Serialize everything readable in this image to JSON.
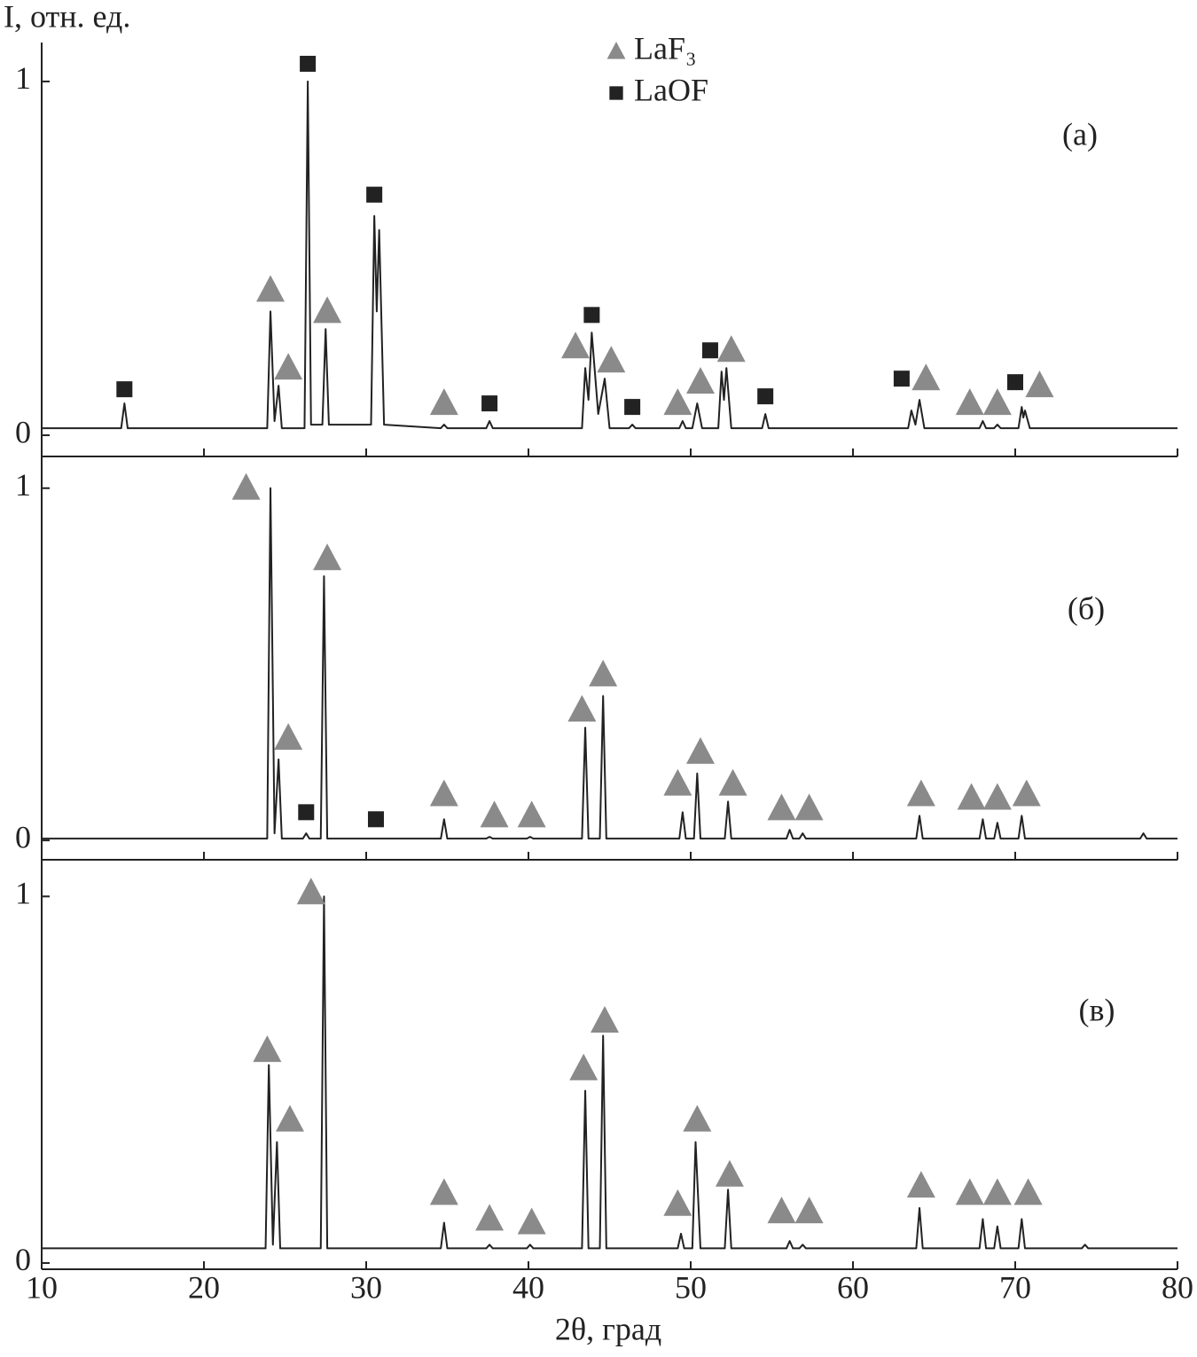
{
  "legend": [
    {
      "name": "LaF₃",
      "shape": "triangle",
      "color": "#8a8a8a"
    },
    {
      "name": "LaOF",
      "shape": "square",
      "color": "#222222"
    }
  ],
  "chart_data": [
    {
      "type": "line",
      "ylabel": "I, отн. ед.",
      "label": "(а)",
      "xlim": [
        10,
        80
      ],
      "ylim": [
        -0.06,
        1.11
      ],
      "xticks": [
        10,
        20,
        30,
        40,
        50,
        60,
        70,
        80
      ],
      "yticks": [
        0,
        1
      ],
      "xtick_labels": false,
      "series": [
        {
          "color": "#222222",
          "x": [
            10,
            14.9,
            15.1,
            15.3,
            23.9,
            24.1,
            24.35,
            24.6,
            24.8,
            26.2,
            26.4,
            26.6,
            27.3,
            27.5,
            27.7,
            30.3,
            30.5,
            30.65,
            30.8,
            31.1,
            34.6,
            34.8,
            35.0,
            37.4,
            37.6,
            37.8,
            43.3,
            43.5,
            43.7,
            43.9,
            44.3,
            44.7,
            45.0,
            46.2,
            46.4,
            46.6,
            49.3,
            49.5,
            49.7,
            50.1,
            50.4,
            50.7,
            51.7,
            51.9,
            52.05,
            52.2,
            52.5,
            54.4,
            54.6,
            54.8,
            63.4,
            63.6,
            63.85,
            64.1,
            64.4,
            67.8,
            68.0,
            68.2,
            68.7,
            68.9,
            69.1,
            70.2,
            70.4,
            70.5,
            70.6,
            70.9,
            80
          ],
          "values": [
            0.02,
            0.02,
            0.09,
            0.02,
            0.02,
            0.35,
            0.04,
            0.14,
            0.02,
            0.02,
            1.0,
            0.03,
            0.03,
            0.3,
            0.03,
            0.03,
            0.62,
            0.35,
            0.58,
            0.03,
            0.02,
            0.03,
            0.02,
            0.02,
            0.04,
            0.02,
            0.02,
            0.19,
            0.1,
            0.29,
            0.06,
            0.16,
            0.02,
            0.02,
            0.03,
            0.02,
            0.02,
            0.04,
            0.02,
            0.02,
            0.09,
            0.02,
            0.02,
            0.18,
            0.1,
            0.19,
            0.02,
            0.02,
            0.06,
            0.02,
            0.02,
            0.07,
            0.03,
            0.1,
            0.02,
            0.02,
            0.04,
            0.02,
            0.02,
            0.03,
            0.02,
            0.02,
            0.08,
            0.05,
            0.07,
            0.02,
            0.02
          ]
        }
      ],
      "markers": {
        "triangle": {
          "x": [
            24.1,
            25.2,
            27.6,
            34.8,
            42.9,
            45.1,
            49.2,
            50.6,
            52.5,
            64.5,
            67.2,
            68.9,
            71.5
          ],
          "y": [
            0.41,
            0.19,
            0.35,
            0.09,
            0.25,
            0.21,
            0.09,
            0.15,
            0.24,
            0.16,
            0.09,
            0.09,
            0.14
          ]
        },
        "square": {
          "x": [
            15.1,
            26.4,
            30.5,
            43.9,
            37.6,
            46.4,
            51.2,
            54.6,
            63.0,
            70.0
          ],
          "y": [
            0.13,
            1.05,
            0.68,
            0.34,
            0.09,
            0.08,
            0.24,
            0.11,
            0.16,
            0.15
          ]
        }
      }
    },
    {
      "type": "line",
      "label": "(б)",
      "xlim": [
        10,
        80
      ],
      "ylim": [
        -0.055,
        1.09
      ],
      "xticks": [
        10,
        20,
        30,
        40,
        50,
        60,
        70,
        80
      ],
      "yticks": [
        0,
        1
      ],
      "xtick_labels": false,
      "series": [
        {
          "color": "#222222",
          "x": [
            10,
            23.9,
            24.1,
            24.35,
            24.6,
            24.8,
            26.1,
            26.3,
            26.5,
            27.2,
            27.4,
            27.6,
            34.6,
            34.8,
            35.0,
            37.4,
            37.6,
            37.8,
            39.9,
            40.1,
            40.3,
            43.3,
            43.5,
            43.7,
            44.4,
            44.6,
            44.8,
            49.3,
            49.5,
            49.7,
            50.2,
            50.4,
            50.6,
            52.1,
            52.3,
            52.5,
            55.9,
            56.1,
            56.3,
            56.7,
            56.9,
            57.1,
            63.9,
            64.1,
            64.3,
            67.8,
            68.0,
            68.2,
            68.7,
            68.9,
            69.1,
            70.2,
            70.4,
            70.6,
            77.7,
            77.9,
            78.1,
            80
          ],
          "values": [
            0.005,
            0.005,
            1.0,
            0.02,
            0.23,
            0.005,
            0.005,
            0.02,
            0.005,
            0.005,
            0.75,
            0.005,
            0.005,
            0.06,
            0.005,
            0.005,
            0.01,
            0.005,
            0.005,
            0.01,
            0.005,
            0.005,
            0.32,
            0.005,
            0.005,
            0.41,
            0.005,
            0.005,
            0.08,
            0.005,
            0.005,
            0.19,
            0.005,
            0.005,
            0.11,
            0.005,
            0.005,
            0.03,
            0.005,
            0.005,
            0.02,
            0.005,
            0.005,
            0.07,
            0.005,
            0.005,
            0.06,
            0.005,
            0.005,
            0.05,
            0.005,
            0.005,
            0.07,
            0.005,
            0.005,
            0.02,
            0.005,
            0.005
          ]
        }
      ],
      "markers": {
        "triangle": {
          "x": [
            22.6,
            25.2,
            27.6,
            34.8,
            37.9,
            40.2,
            43.3,
            44.6,
            49.2,
            50.6,
            52.6,
            55.6,
            57.3,
            64.2,
            67.3,
            68.9,
            70.7
          ],
          "y": [
            1.0,
            0.29,
            0.8,
            0.13,
            0.07,
            0.07,
            0.37,
            0.47,
            0.16,
            0.25,
            0.16,
            0.09,
            0.09,
            0.13,
            0.12,
            0.12,
            0.13
          ]
        },
        "square": {
          "x": [
            26.3,
            30.6
          ],
          "y": [
            0.08,
            0.06
          ]
        }
      }
    },
    {
      "type": "line",
      "label": "(в)",
      "xlabel": "2θ, град",
      "xlim": [
        10,
        80
      ],
      "ylim": [
        -0.017,
        1.1
      ],
      "xticks": [
        10,
        20,
        30,
        40,
        50,
        60,
        70,
        80
      ],
      "yticks": [
        0,
        1
      ],
      "xtick_labels": true,
      "series": [
        {
          "color": "#222222",
          "x": [
            10,
            23.8,
            24.0,
            24.25,
            24.5,
            24.7,
            27.2,
            27.4,
            27.6,
            34.6,
            34.8,
            35.0,
            37.4,
            37.6,
            37.8,
            39.9,
            40.1,
            40.3,
            43.3,
            43.5,
            43.7,
            44.4,
            44.6,
            44.8,
            49.2,
            49.4,
            49.6,
            50.1,
            50.3,
            50.6,
            52.1,
            52.3,
            52.5,
            55.9,
            56.1,
            56.3,
            56.7,
            56.9,
            57.1,
            63.9,
            64.1,
            64.3,
            67.8,
            68.0,
            68.2,
            68.7,
            68.9,
            69.1,
            70.2,
            70.4,
            70.6,
            74.1,
            74.3,
            74.5,
            80
          ],
          "values": [
            0.04,
            0.04,
            0.54,
            0.05,
            0.33,
            0.04,
            0.04,
            1.0,
            0.04,
            0.04,
            0.11,
            0.04,
            0.04,
            0.05,
            0.04,
            0.04,
            0.05,
            0.04,
            0.04,
            0.47,
            0.04,
            0.04,
            0.62,
            0.04,
            0.04,
            0.08,
            0.04,
            0.04,
            0.33,
            0.04,
            0.04,
            0.2,
            0.04,
            0.04,
            0.06,
            0.04,
            0.04,
            0.05,
            0.04,
            0.04,
            0.15,
            0.04,
            0.04,
            0.12,
            0.04,
            0.04,
            0.1,
            0.04,
            0.04,
            0.12,
            0.04,
            0.04,
            0.05,
            0.04,
            0.04
          ]
        }
      ],
      "markers": {
        "triangle": {
          "x": [
            23.9,
            25.3,
            26.6,
            34.8,
            37.6,
            40.2,
            43.4,
            44.7,
            49.2,
            50.4,
            52.4,
            55.6,
            57.3,
            64.2,
            67.2,
            68.9,
            70.8
          ],
          "y": [
            0.58,
            0.39,
            1.01,
            0.19,
            0.12,
            0.11,
            0.53,
            0.66,
            0.16,
            0.39,
            0.24,
            0.14,
            0.14,
            0.21,
            0.19,
            0.19,
            0.19
          ]
        }
      }
    }
  ]
}
